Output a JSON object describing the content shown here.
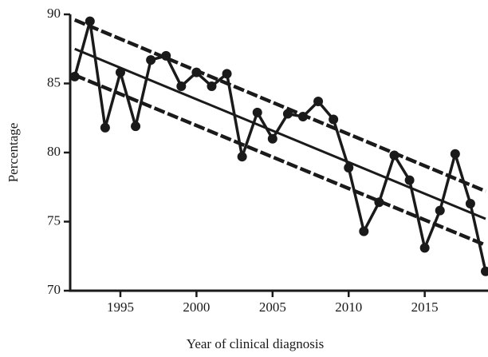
{
  "chart_data": {
    "type": "line",
    "x_label": "Year of clinical diagnosis",
    "y_label": "Percentage",
    "x": [
      1992,
      1993,
      1994,
      1995,
      1996,
      1997,
      1998,
      1999,
      2000,
      2001,
      2002,
      2003,
      2004,
      2005,
      2006,
      2007,
      2008,
      2009,
      2010,
      2011,
      2012,
      2013,
      2014,
      2015,
      2016,
      2017,
      2018,
      2019
    ],
    "series": [
      {
        "color": "#1a1a1a",
        "values": [
          85.5,
          89.5,
          81.8,
          85.8,
          81.9,
          86.7,
          87.0,
          84.8,
          85.8,
          84.8,
          85.7,
          79.7,
          82.9,
          81.0,
          82.8,
          82.6,
          83.7,
          82.4,
          78.9,
          74.3,
          76.4,
          79.8,
          78.0,
          73.1,
          75.8,
          79.9,
          76.3,
          71.4
        ]
      }
    ],
    "trend_lines": [
      {
        "x": [
          1992,
          2019
        ],
        "values": [
          87.5,
          75.2
        ],
        "dashed": false
      },
      {
        "x": [
          1992,
          2019
        ],
        "values": [
          89.6,
          77.2
        ],
        "dashed": true
      },
      {
        "x": [
          1992,
          2019
        ],
        "values": [
          85.6,
          73.3
        ],
        "dashed": true
      }
    ],
    "xlim": [
      1991.7,
      2019
    ],
    "ylim": [
      70,
      90
    ],
    "xticks": [
      1995,
      2000,
      2005,
      2010,
      2015
    ],
    "yticks": [
      70,
      75,
      80,
      85,
      90
    ]
  }
}
